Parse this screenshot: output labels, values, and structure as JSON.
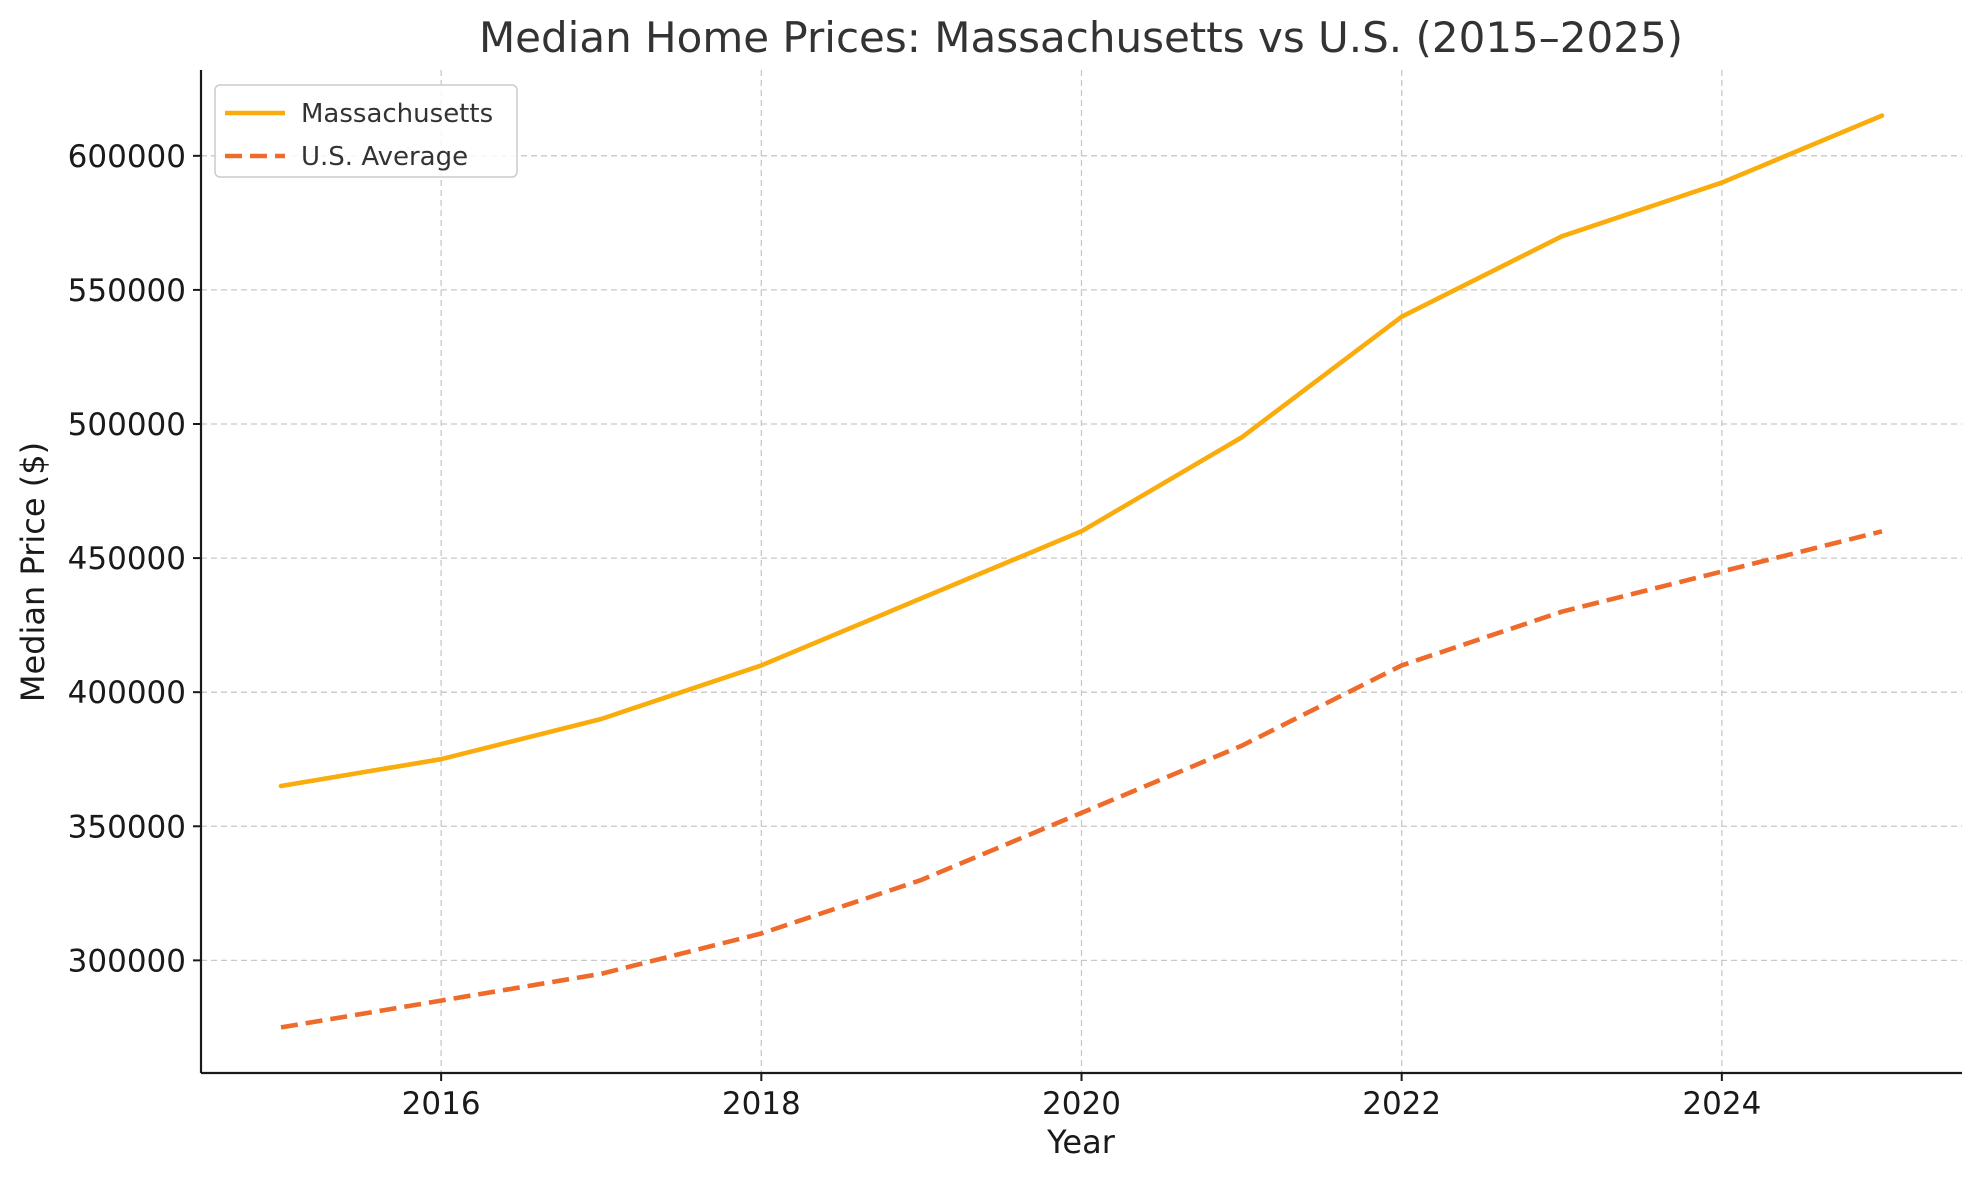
{
  "chart_data": {
    "type": "line",
    "title": "Median Home Prices: Massachusetts vs U.S. (2015–2025)",
    "xlabel": "Year",
    "ylabel": "Median Price ($)",
    "xlim": [
      2014.5,
      2025.5
    ],
    "ylim": [
      258000,
      632000
    ],
    "x_ticks": [
      "2016",
      "2018",
      "2020",
      "2022",
      "2024"
    ],
    "y_ticks": [
      "300000",
      "350000",
      "400000",
      "450000",
      "500000",
      "550000",
      "600000"
    ],
    "grid": true,
    "legend_position": "top-left",
    "x": [
      2015,
      2016,
      2017,
      2018,
      2019,
      2020,
      2021,
      2022,
      2023,
      2024,
      2025
    ],
    "series": [
      {
        "name": "Massachusetts",
        "color": "#F9AC0B",
        "line_style": "solid",
        "values": [
          365000,
          375000,
          390000,
          410000,
          435000,
          460000,
          495000,
          540000,
          570000,
          590000,
          615000
        ]
      },
      {
        "name": "U.S. Average",
        "color": "#EE6B2B",
        "line_style": "dashed",
        "values": [
          275000,
          285000,
          295000,
          310000,
          330000,
          355000,
          380000,
          410000,
          430000,
          445000,
          460000
        ]
      }
    ]
  }
}
